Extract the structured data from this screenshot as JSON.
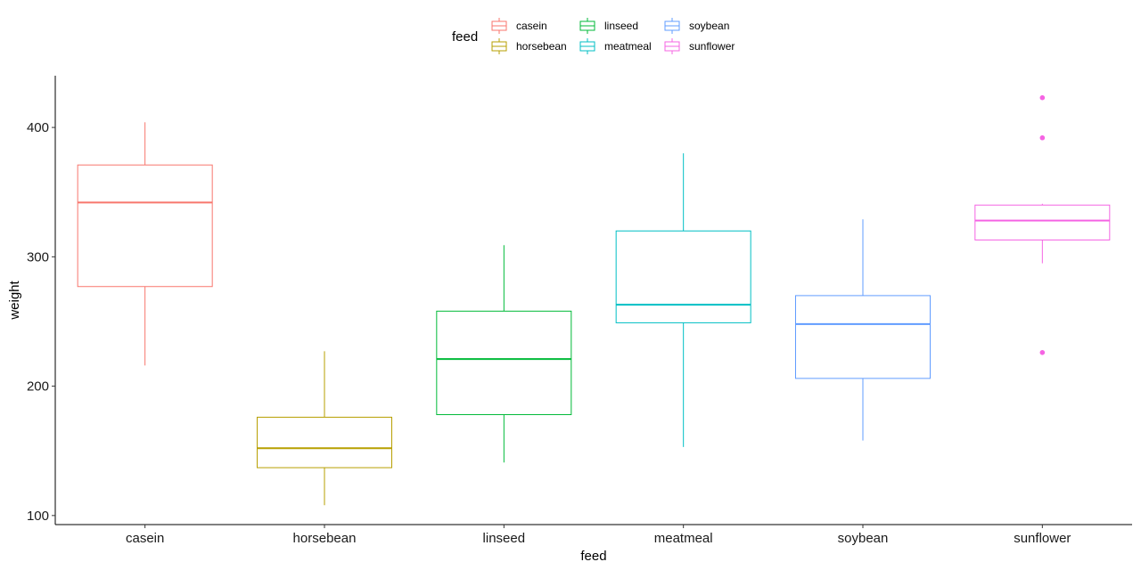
{
  "chart_data": {
    "type": "boxplot",
    "xlabel": "feed",
    "ylabel": "weight",
    "ylim": [
      93,
      440
    ],
    "yticks": [
      100,
      200,
      300,
      400
    ],
    "grid": false,
    "legend": {
      "title": "feed",
      "position": "top",
      "entries": [
        "casein",
        "horsebean",
        "linseed",
        "meatmeal",
        "soybean",
        "sunflower"
      ]
    },
    "categories": [
      "casein",
      "horsebean",
      "linseed",
      "meatmeal",
      "soybean",
      "sunflower"
    ],
    "series": [
      {
        "name": "casein",
        "color": "#F8766D",
        "whisker_low": 216,
        "q1": 277,
        "median": 342,
        "q3": 371,
        "whisker_high": 404,
        "outliers": []
      },
      {
        "name": "horsebean",
        "color": "#B79F00",
        "whisker_low": 108,
        "q1": 137,
        "median": 152,
        "q3": 176,
        "whisker_high": 227,
        "outliers": []
      },
      {
        "name": "linseed",
        "color": "#00BA38",
        "whisker_low": 141,
        "q1": 178,
        "median": 221,
        "q3": 258,
        "whisker_high": 309,
        "outliers": []
      },
      {
        "name": "meatmeal",
        "color": "#00BFC4",
        "whisker_low": 153,
        "q1": 249,
        "median": 263,
        "q3": 320,
        "whisker_high": 380,
        "outliers": []
      },
      {
        "name": "soybean",
        "color": "#619CFF",
        "whisker_low": 158,
        "q1": 206,
        "median": 248,
        "q3": 270,
        "whisker_high": 329,
        "outliers": []
      },
      {
        "name": "sunflower",
        "color": "#F564E3",
        "whisker_low": 295,
        "q1": 313,
        "median": 328,
        "q3": 340,
        "whisker_high": 341,
        "outliers": [
          226,
          392,
          423
        ]
      }
    ]
  }
}
